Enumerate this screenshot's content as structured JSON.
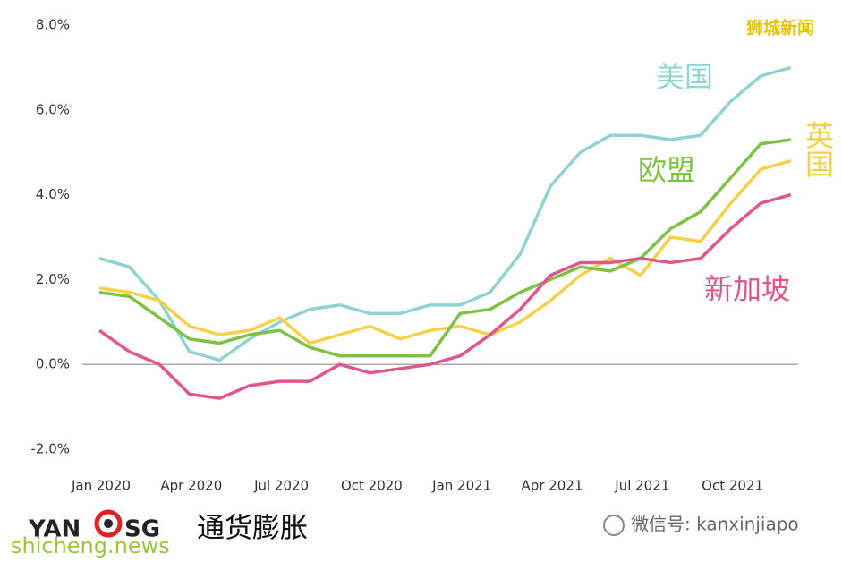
{
  "chart_data": {
    "type": "line",
    "categories": [
      "Jan 2020",
      null,
      null,
      "Apr 2020",
      null,
      null,
      "Jul 2020",
      null,
      null,
      "Oct 2020",
      null,
      null,
      "Jan 2021",
      null,
      null,
      "Apr 2021",
      null,
      null,
      "Jul 2021",
      null,
      null,
      "Oct 2021",
      null,
      null
    ],
    "series": [
      {
        "name": "美国",
        "color": "#8fd4d0",
        "values": [
          2.5,
          2.3,
          1.5,
          0.3,
          0.1,
          0.6,
          1.0,
          1.3,
          1.4,
          1.2,
          1.2,
          1.4,
          1.4,
          1.7,
          2.6,
          4.2,
          5.0,
          5.4,
          5.4,
          5.3,
          5.4,
          6.2,
          6.8,
          7.0
        ]
      },
      {
        "name": "英国",
        "color": "#f7d04a",
        "values": [
          1.8,
          1.7,
          1.5,
          0.9,
          0.7,
          0.8,
          1.1,
          0.5,
          0.7,
          0.9,
          0.6,
          0.8,
          0.9,
          0.7,
          1.0,
          1.5,
          2.1,
          2.5,
          2.1,
          3.0,
          2.9,
          3.8,
          4.6,
          4.8
        ]
      },
      {
        "name": "欧盟",
        "color": "#7dc243",
        "values": [
          1.7,
          1.6,
          1.1,
          0.6,
          0.5,
          0.7,
          0.8,
          0.4,
          0.2,
          0.2,
          0.2,
          0.2,
          1.2,
          1.3,
          1.7,
          2.0,
          2.3,
          2.2,
          2.5,
          3.2,
          3.6,
          4.4,
          5.2,
          5.3
        ]
      },
      {
        "name": "新加坡",
        "color": "#e0558e",
        "values": [
          0.8,
          0.3,
          0.0,
          -0.7,
          -0.8,
          -0.5,
          -0.4,
          -0.4,
          0.0,
          -0.2,
          -0.1,
          0.0,
          0.2,
          0.7,
          1.3,
          2.1,
          2.4,
          2.4,
          2.5,
          2.4,
          2.5,
          3.2,
          3.8,
          4.0
        ]
      }
    ],
    "ylim": [
      -2,
      8
    ],
    "yticks": [
      {
        "value": -2,
        "label": "-2.0%"
      },
      {
        "value": 0,
        "label": "0.0%"
      },
      {
        "value": 2,
        "label": "2.0%"
      },
      {
        "value": 4,
        "label": "4.0%"
      },
      {
        "value": 6,
        "label": "6.0%"
      },
      {
        "value": 8,
        "label": "8.0%"
      }
    ],
    "grid": false
  },
  "branding": {
    "watermark": "狮城新闻",
    "caption": "通货膨胀",
    "logo_left": "YAN",
    "logo_right": "SG",
    "site": "shicheng.news",
    "wechat": "微信号: kanxinjiapo"
  }
}
